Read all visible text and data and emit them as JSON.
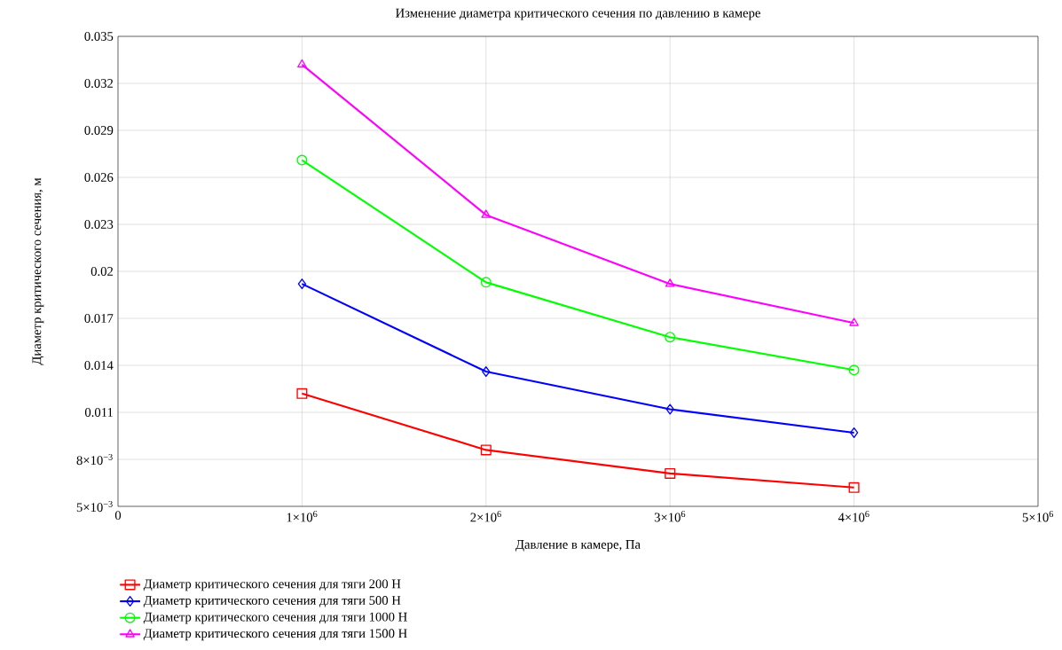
{
  "chart_data": {
    "type": "line",
    "title": "Изменение диаметра критического сечения по давлению в камере",
    "xlabel": "Давление в камере, Па",
    "ylabel": "Диаметр критического сечения, м",
    "x": [
      1000000,
      2000000,
      3000000,
      4000000
    ],
    "series": [
      {
        "name": "Диаметр критического сечения для тяги 200 Н",
        "color": "#ff0000",
        "marker": "square",
        "values": [
          0.0122,
          0.0086,
          0.0071,
          0.0062
        ]
      },
      {
        "name": "Диаметр критического сечения для тяги 500 Н",
        "color": "#0000ff",
        "marker": "diamond",
        "values": [
          0.0192,
          0.0136,
          0.0112,
          0.0097
        ]
      },
      {
        "name": "Диаметр критического сечения для тяги 1000 Н",
        "color": "#00ff00",
        "marker": "circle",
        "values": [
          0.0271,
          0.0193,
          0.0158,
          0.0137
        ]
      },
      {
        "name": "Диаметр критического сечения для тяги 1500 Н",
        "color": "#ff00ff",
        "marker": "triangle",
        "values": [
          0.0332,
          0.0236,
          0.0192,
          0.0167
        ]
      }
    ],
    "xlim": [
      0,
      5000000
    ],
    "xticks": [
      0,
      {
        "value": 1000000,
        "label": "1×10$^{6}$"
      },
      {
        "value": 2000000,
        "label": "2×10$^{6}$"
      },
      {
        "value": 3000000,
        "label": "3×10$^{6}$"
      },
      {
        "value": 4000000,
        "label": "4×10$^{6}$"
      },
      {
        "value": 5000000,
        "label": "5×10$^{6}$"
      }
    ],
    "ylim": [
      0.005,
      0.035
    ],
    "yticks": [
      {
        "value": 0.005,
        "label": "5×10$^{−3}$"
      },
      {
        "value": 0.008,
        "label": "8×10$^{−3}$"
      },
      0.011,
      0.014,
      0.017,
      0.02,
      0.023,
      0.026,
      0.029,
      0.032,
      0.035
    ],
    "grid": true,
    "legend": "bottom",
    "line_style": "solid"
  }
}
